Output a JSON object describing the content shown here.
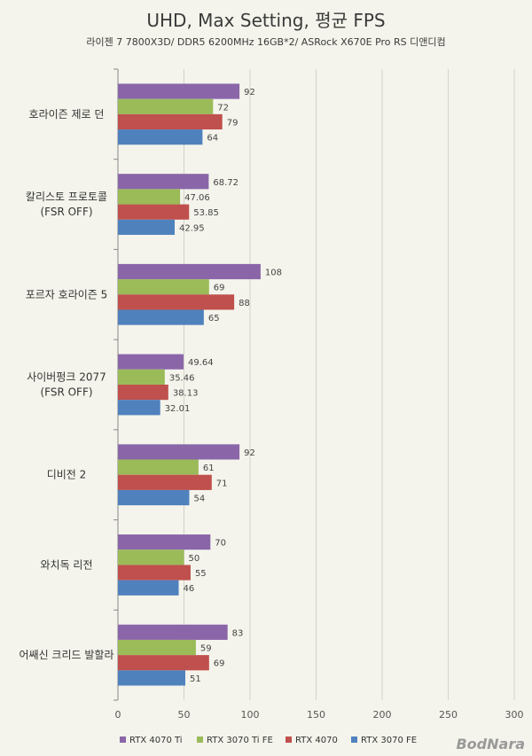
{
  "chart_data": {
    "type": "bar",
    "orientation": "horizontal",
    "title": "UHD, Max Setting, 평균 FPS",
    "subtitle": "라이젠 7 7800X3D/ DDR5 6200MHz 16GB*2/ ASRock X670E Pro RS 디앤디컴",
    "categories": [
      [
        "호라이즌 제로 던"
      ],
      [
        "칼리스토 프로토콜",
        "(FSR OFF)"
      ],
      [
        "포르자 호라이즌 5"
      ],
      [
        "사이버펑크 2077",
        "(FSR OFF)"
      ],
      [
        "디비전 2"
      ],
      [
        "와치독 리전"
      ],
      [
        "어쌔신 크리드 발할라"
      ]
    ],
    "series": [
      {
        "name": "RTX 4070 Ti",
        "color": "#8a66a9",
        "values": [
          92,
          68.72,
          108,
          49.64,
          92,
          70,
          83
        ],
        "labels": [
          "92",
          "68.72",
          "108",
          "49.64",
          "92",
          "70",
          "83"
        ]
      },
      {
        "name": "RTX 3070 Ti FE",
        "color": "#9bbb59",
        "values": [
          72,
          47.06,
          69,
          35.46,
          61,
          50,
          59
        ],
        "labels": [
          "72",
          "47.06",
          "69",
          "35.46",
          "61",
          "50",
          "59"
        ]
      },
      {
        "name": "RTX 4070",
        "color": "#c0504d",
        "values": [
          79,
          53.85,
          88,
          38.13,
          71,
          55,
          69
        ],
        "labels": [
          "79",
          "53.85",
          "88",
          "38.13",
          "71",
          "55",
          "69"
        ]
      },
      {
        "name": "RTX 3070 FE",
        "color": "#4f81bd",
        "values": [
          64,
          42.95,
          65,
          32.01,
          54,
          46,
          51
        ],
        "labels": [
          "64",
          "42.95",
          "65",
          "32.01",
          "54",
          "46",
          "51"
        ]
      }
    ],
    "xlim": [
      0,
      300
    ],
    "xticks": [
      "0",
      "50",
      "100",
      "150",
      "200",
      "250",
      "300"
    ],
    "grid": true,
    "legend": "bottom"
  },
  "watermark": "BodNara"
}
